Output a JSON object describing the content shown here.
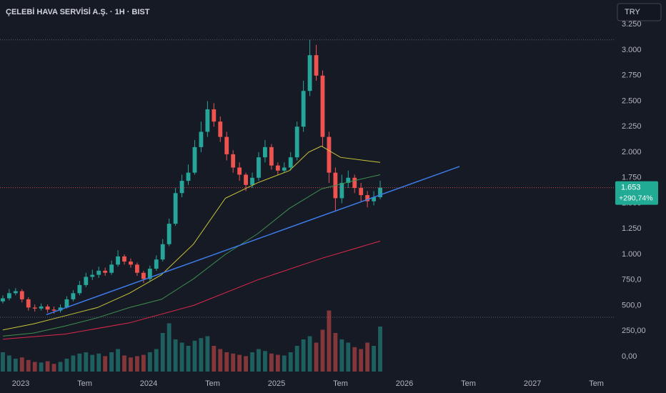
{
  "chart_data": {
    "type": "candlestick",
    "title": "ÇELEBİ HAVA SERVİSİ A.Ş. · 1H · BIST",
    "currency": "TRY",
    "up_color": "#26a69a",
    "down_color": "#ef5350",
    "xlim": [
      2022.838,
      2027.642
    ],
    "xticks": [
      {
        "value": 2023,
        "label": "2023"
      },
      {
        "value": 2023.5,
        "label": "Tem"
      },
      {
        "value": 2024,
        "label": "2024"
      },
      {
        "value": 2024.5,
        "label": "Tem"
      },
      {
        "value": 2025,
        "label": "2025"
      },
      {
        "value": 2025.5,
        "label": "Tem"
      },
      {
        "value": 2026,
        "label": "2026"
      },
      {
        "value": 2026.5,
        "label": "Tem"
      },
      {
        "value": 2027,
        "label": "2027"
      },
      {
        "value": 2027.5,
        "label": "Tem"
      }
    ],
    "ylim": [
      -147,
      3490
    ],
    "yticks": [
      {
        "value": 3250,
        "label": "3.250"
      },
      {
        "value": 3000,
        "label": "3.000"
      },
      {
        "value": 2750,
        "label": "2.750"
      },
      {
        "value": 2500,
        "label": "2.500"
      },
      {
        "value": 2250,
        "label": "2.250"
      },
      {
        "value": 2000,
        "label": "2.000"
      },
      {
        "value": 1750,
        "label": "1.750"
      },
      {
        "value": 1500,
        "label": "1.500"
      },
      {
        "value": 1250,
        "label": "1.250"
      },
      {
        "value": 1000,
        "label": "1.000"
      },
      {
        "value": 750,
        "label": "750,0"
      },
      {
        "value": 500,
        "label": "500,0"
      },
      {
        "value": 250,
        "label": "250,00"
      },
      {
        "value": 0,
        "label": "0,00"
      }
    ],
    "x": [
      2022.86,
      2022.91,
      2022.96,
      2023.01,
      2023.06,
      2023.11,
      2023.16,
      2023.21,
      2023.26,
      2023.31,
      2023.36,
      2023.41,
      2023.46,
      2023.51,
      2023.56,
      2023.61,
      2023.66,
      2023.71,
      2023.76,
      2023.81,
      2023.86,
      2023.91,
      2023.96,
      2024.01,
      2024.06,
      2024.11,
      2024.16,
      2024.21,
      2024.26,
      2024.31,
      2024.36,
      2024.41,
      2024.46,
      2024.51,
      2024.56,
      2024.61,
      2024.66,
      2024.71,
      2024.76,
      2024.81,
      2024.86,
      2024.91,
      2024.96,
      2025.01,
      2025.06,
      2025.11,
      2025.16,
      2025.21,
      2025.26,
      2025.31,
      2025.36,
      2025.41,
      2025.46,
      2025.51,
      2025.56,
      2025.61,
      2025.66,
      2025.71,
      2025.76,
      2025.81
    ],
    "open": [
      540,
      570,
      620,
      640,
      560,
      480,
      470,
      490,
      460,
      450,
      480,
      560,
      620,
      700,
      780,
      800,
      840,
      820,
      900,
      980,
      930,
      900,
      820,
      760,
      860,
      950,
      1100,
      1300,
      1600,
      1720,
      1800,
      2050,
      2200,
      2420,
      2300,
      2150,
      1980,
      1850,
      1780,
      1680,
      1750,
      1950,
      2050,
      1870,
      1820,
      1850,
      1950,
      2250,
      2600,
      2950,
      2750,
      2150,
      1800,
      1550,
      1700,
      1750,
      1650,
      1580,
      1520,
      1560
    ],
    "high": [
      600,
      660,
      670,
      660,
      580,
      510,
      520,
      510,
      490,
      510,
      590,
      650,
      740,
      820,
      850,
      880,
      870,
      940,
      1040,
      1000,
      960,
      920,
      840,
      890,
      990,
      1150,
      1350,
      1650,
      1780,
      1880,
      2120,
      2300,
      2500,
      2480,
      2350,
      2200,
      2020,
      1900,
      1800,
      1800,
      2000,
      2120,
      2080,
      1900,
      1900,
      2000,
      2300,
      2700,
      3100,
      3050,
      2800,
      2200,
      1850,
      1780,
      1820,
      1780,
      1700,
      1620,
      1620,
      1720
    ],
    "low": [
      520,
      550,
      600,
      530,
      450,
      440,
      450,
      430,
      420,
      430,
      470,
      540,
      600,
      680,
      750,
      770,
      790,
      800,
      880,
      900,
      870,
      790,
      720,
      740,
      840,
      930,
      1080,
      1280,
      1560,
      1680,
      1780,
      2000,
      2150,
      2250,
      2100,
      1920,
      1800,
      1720,
      1620,
      1650,
      1720,
      1900,
      1830,
      1780,
      1800,
      1820,
      1920,
      2200,
      2550,
      2700,
      2050,
      1700,
      1420,
      1500,
      1650,
      1600,
      1520,
      1460,
      1480,
      1540
    ],
    "close": [
      570,
      620,
      640,
      560,
      480,
      470,
      490,
      460,
      450,
      480,
      560,
      620,
      700,
      780,
      800,
      840,
      820,
      900,
      980,
      930,
      900,
      820,
      760,
      860,
      950,
      1100,
      1300,
      1600,
      1720,
      1800,
      2050,
      2200,
      2420,
      2300,
      2150,
      1980,
      1850,
      1780,
      1680,
      1750,
      1950,
      2050,
      1870,
      1820,
      1850,
      1950,
      2250,
      2600,
      2950,
      2750,
      2150,
      1800,
      1550,
      1700,
      1750,
      1650,
      1580,
      1520,
      1560,
      1653
    ],
    "volume": [
      30,
      25,
      20,
      22,
      18,
      15,
      14,
      16,
      12,
      15,
      20,
      25,
      28,
      30,
      26,
      28,
      24,
      30,
      35,
      25,
      22,
      24,
      26,
      30,
      35,
      60,
      75,
      50,
      45,
      40,
      48,
      52,
      55,
      40,
      35,
      30,
      28,
      26,
      24,
      30,
      35,
      32,
      28,
      26,
      25,
      30,
      40,
      50,
      55,
      45,
      65,
      95,
      60,
      50,
      45,
      38,
      35,
      45,
      40,
      70
    ],
    "volume_ylim": [
      0,
      100
    ],
    "lines": [
      {
        "color": "#c8c43a",
        "x": [
          2022.86,
          2023.1,
          2023.35,
          2023.6,
          2023.85,
          2024.1,
          2024.35,
          2024.6,
          2024.85,
          2025.1,
          2025.25,
          2025.35,
          2025.5,
          2025.81
        ],
        "values": [
          260,
          320,
          400,
          480,
          620,
          800,
          1100,
          1550,
          1700,
          1820,
          2000,
          2060,
          1950,
          1900
        ]
      },
      {
        "color": "#3f8f4e",
        "x": [
          2022.86,
          2023.1,
          2023.35,
          2023.6,
          2023.85,
          2024.1,
          2024.35,
          2024.6,
          2024.85,
          2025.1,
          2025.35,
          2025.6,
          2025.81
        ],
        "values": [
          200,
          230,
          300,
          380,
          480,
          560,
          760,
          1000,
          1200,
          1450,
          1640,
          1720,
          1780
        ]
      },
      {
        "color": "#e0284a",
        "x": [
          2022.86,
          2023.35,
          2023.85,
          2024.35,
          2024.85,
          2025.35,
          2025.81
        ],
        "values": [
          170,
          220,
          330,
          500,
          750,
          960,
          1130
        ]
      },
      {
        "color": "#3d7be8",
        "x": [
          2023.2,
          2026.43
        ],
        "values": [
          410,
          1860
        ]
      }
    ],
    "last_price": {
      "value": 1653,
      "label": "1.653"
    },
    "change_label": "+290,74%"
  }
}
